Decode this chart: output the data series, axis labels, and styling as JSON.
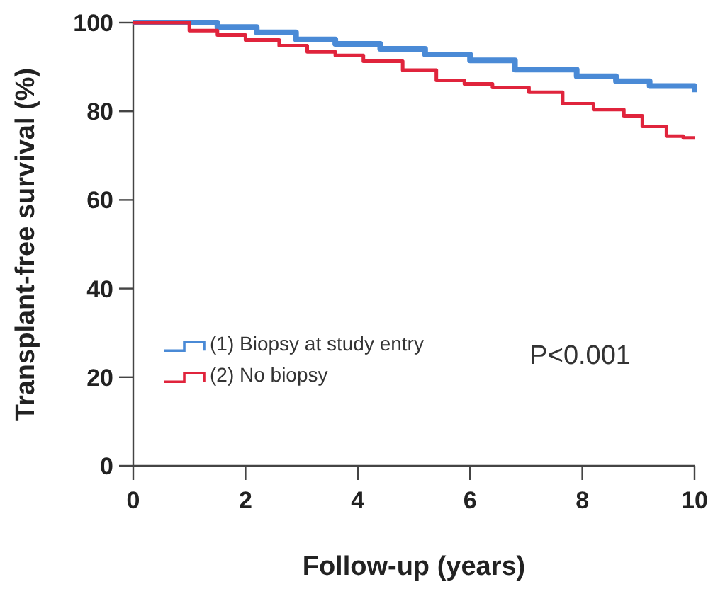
{
  "chart_data": {
    "type": "step",
    "xlabel": "Follow-up (years)",
    "ylabel": "Transplant-free survival (%)",
    "xlim": [
      0,
      10
    ],
    "ylim": [
      0,
      100
    ],
    "xticks": [
      0,
      2,
      4,
      6,
      8,
      10
    ],
    "yticks": [
      0,
      20,
      40,
      60,
      80,
      100
    ],
    "grid": false,
    "legend": "left",
    "annotations": [
      "P<0.001"
    ],
    "series": [
      {
        "name": "(1) Biopsy at study entry",
        "color": "#4a8ad6",
        "x": [
          0,
          0.7,
          1.5,
          2.2,
          2.9,
          3.6,
          4.4,
          5.2,
          6.0,
          6.8,
          7.9,
          8.6,
          9.2,
          10
        ],
        "values": [
          100,
          100,
          99,
          97.8,
          96.2,
          95.2,
          94.1,
          92.8,
          91.5,
          89.4,
          87.9,
          86.8,
          85.7,
          84.3
        ]
      },
      {
        "name": "(2) No biopsy",
        "color": "#e0243c",
        "x": [
          0,
          0.5,
          1.0,
          1.5,
          2.0,
          2.6,
          3.1,
          3.6,
          4.1,
          4.8,
          5.4,
          5.9,
          6.4,
          7.05,
          7.65,
          8.2,
          8.74,
          9.07,
          9.5,
          9.8,
          10
        ],
        "values": [
          100,
          100,
          98.2,
          97.2,
          96.1,
          94.8,
          93.4,
          92.6,
          91.3,
          89.3,
          87.0,
          86.2,
          85.4,
          84.3,
          81.7,
          80.4,
          79.0,
          76.6,
          74.4,
          74,
          74
        ]
      }
    ]
  }
}
